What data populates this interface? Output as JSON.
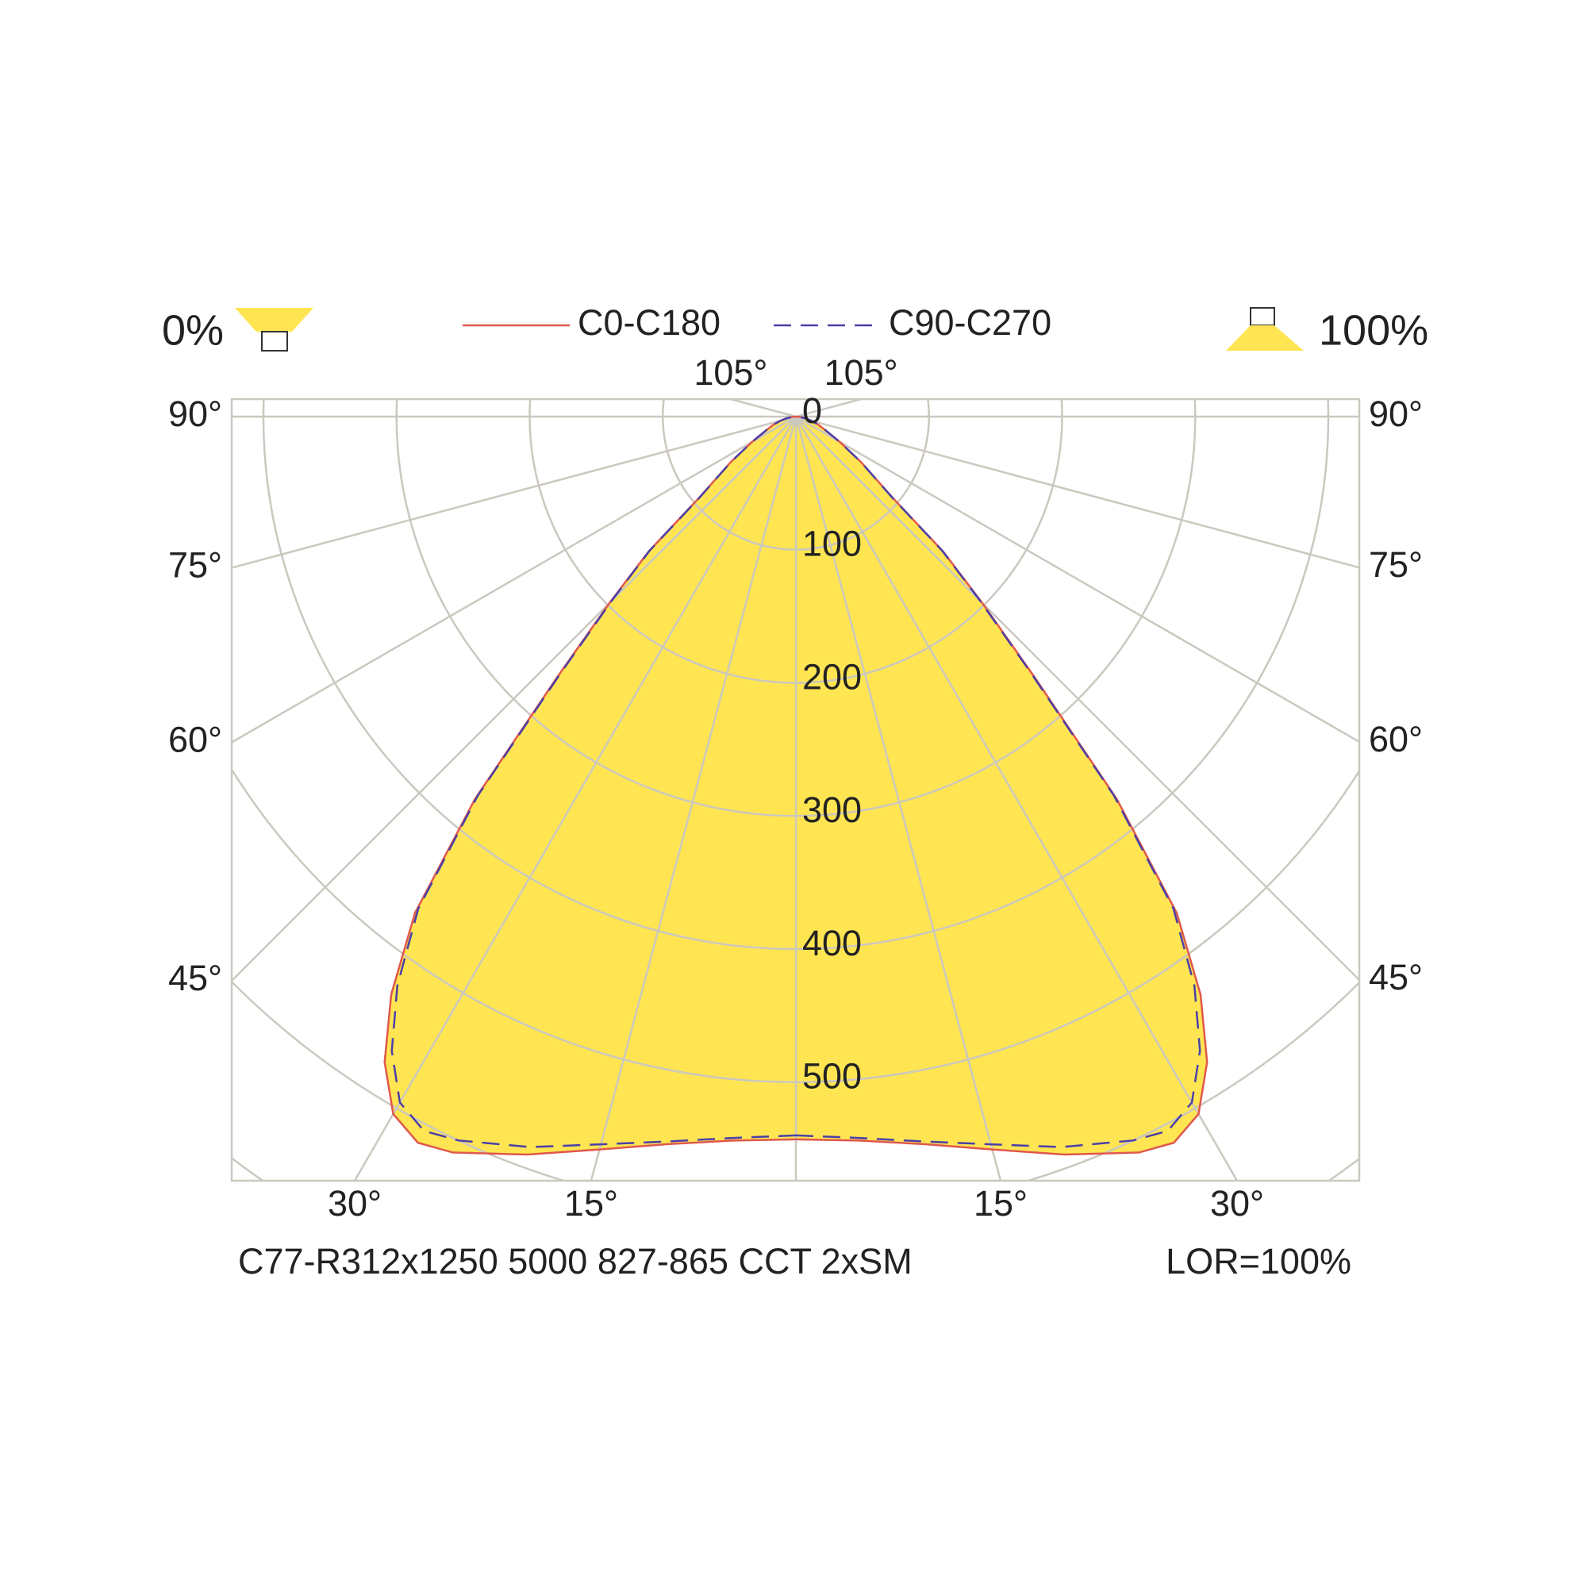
{
  "chart_data": {
    "type": "polar",
    "angles": [
      0,
      5,
      10,
      15,
      20,
      25,
      27.5,
      30,
      32.5,
      35,
      37.5,
      40,
      42.5,
      45,
      47.5,
      50,
      55,
      60,
      65,
      70,
      75,
      80,
      85,
      90
    ],
    "series": [
      {
        "name": "C0-C180",
        "color": "#e0584c",
        "style": "solid",
        "values": [
          543,
          546,
          555,
          570,
          590,
          610,
          615,
          605,
          575,
          530,
          470,
          375,
          265,
          198,
          150,
          95,
          60,
          38,
          25,
          18,
          12,
          7,
          3,
          0
        ]
      },
      {
        "name": "C90-C270",
        "color": "#4b3fa8",
        "style": "dashed",
        "values": [
          540,
          544,
          553,
          566,
          584,
          600,
          605,
          595,
          565,
          522,
          466,
          372,
          262,
          196,
          149,
          94,
          60,
          38,
          25,
          18,
          12,
          7,
          3,
          0
        ]
      }
    ],
    "fill": "#ffe552",
    "rlim": [
      0,
      700
    ],
    "rticks": [
      0,
      100,
      200,
      300,
      400,
      500
    ],
    "angle_ticks": [
      {
        "value": 15,
        "label": "15°"
      },
      {
        "value": 30,
        "label": "30°"
      },
      {
        "value": 45,
        "label": "45°"
      },
      {
        "value": 60,
        "label": "60°"
      },
      {
        "value": 75,
        "label": "75°"
      },
      {
        "value": 90,
        "label": "90°"
      },
      {
        "value": 105,
        "label": "105°"
      }
    ],
    "grid": true,
    "lower_share": "0%",
    "upper_share": "100%",
    "footer": "C77-R312x1250 5000 827-865 CCT 2xSM",
    "lor": "LOR=100%"
  }
}
